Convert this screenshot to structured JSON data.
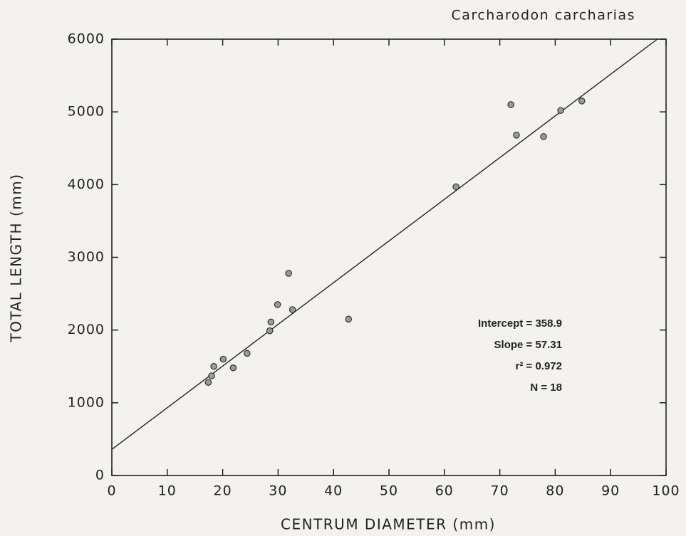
{
  "chart_data": {
    "type": "scatter",
    "title": "Carcharodon carcharias",
    "x_label": "CENTRUM DIAMETER (mm)",
    "y_label": "TOTAL LENGTH (mm)",
    "x": [
      17.4,
      18.0,
      18.4,
      20.1,
      21.9,
      24.4,
      28.5,
      28.7,
      29.9,
      31.9,
      32.6,
      42.7,
      62.1,
      72.0,
      73.0,
      77.9,
      81.0,
      84.8
    ],
    "series": [
      {
        "color": "#9a9a9a",
        "values": [
          1280,
          1370,
          1500,
          1600,
          1480,
          1680,
          1990,
          2110,
          2350,
          2780,
          2280,
          2150,
          3970,
          5100,
          4680,
          4660,
          5020,
          5150
        ]
      }
    ],
    "fit": {
      "intercept": 358.9,
      "slope": 57.31
    },
    "annotations": [
      "Intercept = 358.9",
      "Slope = 57.31",
      "r² = 0.972",
      "N = 18"
    ],
    "xlim": [
      0,
      100
    ],
    "xticks": [
      0,
      10,
      20,
      30,
      40,
      50,
      60,
      70,
      80,
      90,
      100
    ],
    "ylim": [
      0,
      6000
    ],
    "yticks": [
      0,
      1000,
      2000,
      3000,
      4000,
      5000,
      6000
    ],
    "grid": false
  }
}
